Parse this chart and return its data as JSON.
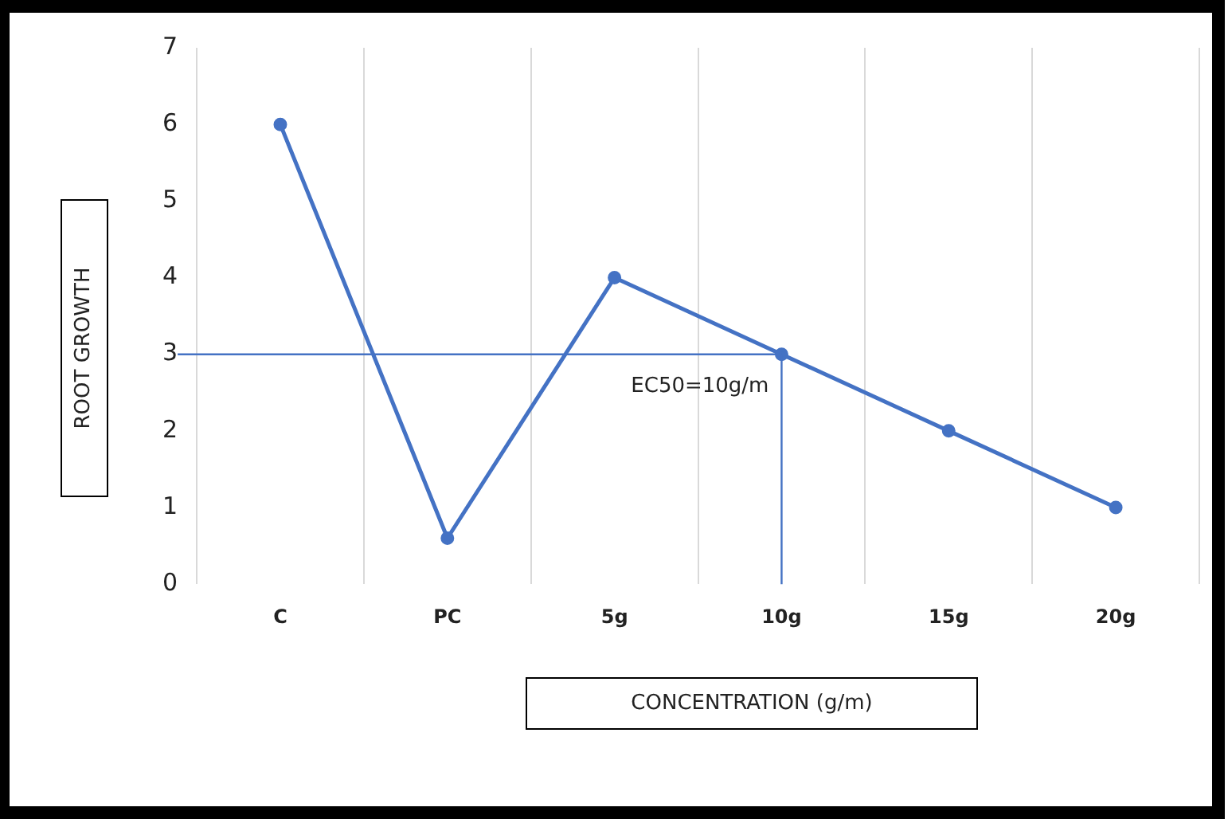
{
  "chart_data": {
    "type": "line",
    "xlabel": "CONCENTRATION (g/m)",
    "ylabel": "ROOT  GROWTH",
    "categories": [
      "C",
      "PC",
      "5g",
      "10g",
      "15g",
      "20g"
    ],
    "series": [
      {
        "color": "#4472c4",
        "values": [
          6,
          0.6,
          4,
          3,
          2,
          1
        ]
      }
    ],
    "ylim": [
      0,
      7
    ],
    "yticks": [
      0,
      1,
      2,
      3,
      4,
      5,
      6,
      7
    ],
    "grid": "x",
    "legend": false,
    "marker": "circle",
    "line_style": "solid",
    "annotations": [
      {
        "text": "EC50=10g/m",
        "x": "10g",
        "y": 3
      }
    ]
  }
}
